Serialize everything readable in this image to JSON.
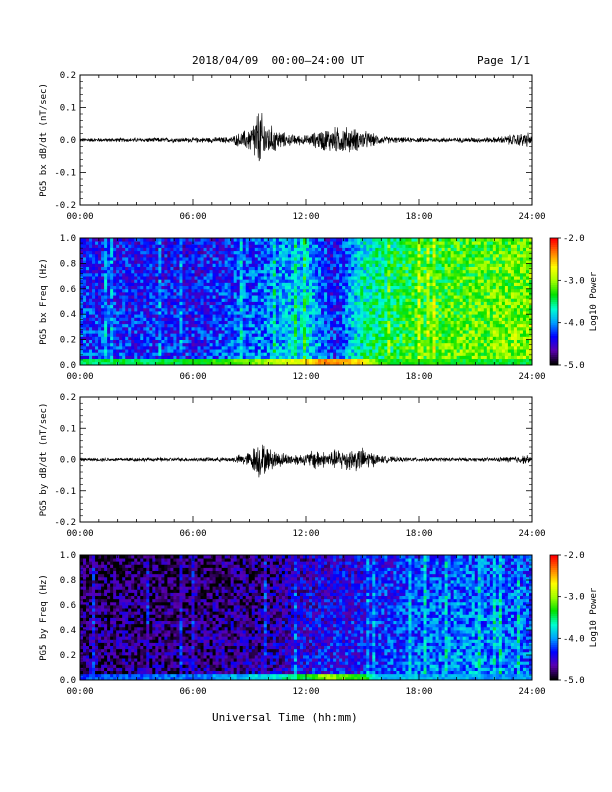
{
  "header": {
    "title": "2018/04/09  00:00–24:00 UT",
    "page": "Page 1/1"
  },
  "xlabel": "Universal Time (hh:mm)",
  "colors": {
    "trace": "#000000",
    "colormap": [
      "#000000",
      "#5b00b0",
      "#0000ff",
      "#00a0ff",
      "#00ffd0",
      "#00e000",
      "#a0ff00",
      "#ffff00",
      "#ff8000",
      "#ff0000"
    ]
  },
  "chart_data": [
    {
      "type": "line",
      "ylabel": "PG5 bx dB/dt (nT/sec)",
      "xlim": [
        0,
        24
      ],
      "ylim": [
        -0.2,
        0.2
      ],
      "yticks": [
        "-0.2",
        "-0.1",
        "0.0",
        "0.1",
        "0.2"
      ],
      "xticks": [
        "00:00",
        "06:00",
        "12:00",
        "18:00",
        "24:00"
      ],
      "envelope": {
        "hours": [
          0,
          2,
          4,
          6,
          8,
          9,
          9.5,
          10,
          11,
          12,
          12.5,
          13,
          14,
          15,
          16,
          17,
          18,
          20,
          22,
          23.8,
          24
        ],
        "amplitude": [
          0.005,
          0.005,
          0.006,
          0.006,
          0.008,
          0.03,
          0.08,
          0.04,
          0.015,
          0.012,
          0.02,
          0.03,
          0.035,
          0.025,
          0.01,
          0.007,
          0.006,
          0.006,
          0.007,
          0.02,
          0.006
        ]
      }
    },
    {
      "type": "heatmap",
      "ylabel": "PG5 bx Freq (Hz)",
      "xlim": [
        0,
        24
      ],
      "ylim": [
        0,
        1.0
      ],
      "yticks": [
        "0.0",
        "0.2",
        "0.4",
        "0.6",
        "0.8",
        "1.0"
      ],
      "xticks": [
        "00:00",
        "06:00",
        "12:00",
        "18:00",
        "24:00"
      ],
      "colorbar": {
        "label": "Log10 Power",
        "range": [
          -5.0,
          -2.0
        ],
        "ticks": [
          "-2.0",
          "-3.0",
          "-4.0",
          "-5.0"
        ]
      },
      "background": {
        "hours": [
          0,
          6,
          10,
          12,
          13.5,
          15,
          18,
          21,
          24
        ],
        "level": [
          -4.2,
          -4.3,
          -4.0,
          -3.7,
          -4.3,
          -3.6,
          -3.2,
          -3.1,
          -3.0
        ]
      },
      "low_band": {
        "hours": [
          0,
          6,
          10,
          12,
          13,
          15,
          16,
          24
        ],
        "level": [
          -3.5,
          -3.4,
          -3.0,
          -2.6,
          -2.3,
          -2.6,
          -3.3,
          -3.4
        ]
      }
    },
    {
      "type": "line",
      "ylabel": "PG5 by dB/dt (nT/sec)",
      "xlim": [
        0,
        24
      ],
      "ylim": [
        -0.2,
        0.2
      ],
      "yticks": [
        "-0.2",
        "-0.1",
        "0.0",
        "0.1",
        "0.2"
      ],
      "xticks": [
        "00:00",
        "06:00",
        "12:00",
        "18:00",
        "24:00"
      ],
      "envelope": {
        "hours": [
          0,
          2,
          4,
          6,
          8,
          9,
          9.5,
          10,
          11,
          12,
          12.5,
          13,
          14,
          15,
          16,
          17,
          18,
          20,
          22,
          23.8,
          24
        ],
        "amplitude": [
          0.004,
          0.005,
          0.005,
          0.005,
          0.006,
          0.02,
          0.05,
          0.03,
          0.015,
          0.015,
          0.03,
          0.02,
          0.03,
          0.03,
          0.01,
          0.006,
          0.005,
          0.005,
          0.005,
          0.012,
          0.005
        ]
      }
    },
    {
      "type": "heatmap",
      "ylabel": "PG5 by Freq (Hz)",
      "xlim": [
        0,
        24
      ],
      "ylim": [
        0,
        1.0
      ],
      "yticks": [
        "0.0",
        "0.2",
        "0.4",
        "0.6",
        "0.8",
        "1.0"
      ],
      "xticks": [
        "00:00",
        "06:00",
        "12:00",
        "18:00",
        "24:00"
      ],
      "colorbar": {
        "label": "Log10 Power",
        "range": [
          -5.0,
          -2.0
        ],
        "ticks": [
          "-2.0",
          "-3.0",
          "-4.0",
          "-5.0"
        ]
      },
      "background": {
        "hours": [
          0,
          6,
          10,
          12,
          15,
          18,
          21,
          24
        ],
        "level": [
          -4.7,
          -4.7,
          -4.6,
          -4.4,
          -4.3,
          -4.1,
          -4.0,
          -4.1
        ]
      },
      "low_band": {
        "hours": [
          0,
          6,
          10,
          12,
          13,
          15,
          16,
          24
        ],
        "level": [
          -4.2,
          -4.1,
          -3.8,
          -3.4,
          -3.0,
          -3.3,
          -3.9,
          -4.0
        ]
      }
    }
  ]
}
